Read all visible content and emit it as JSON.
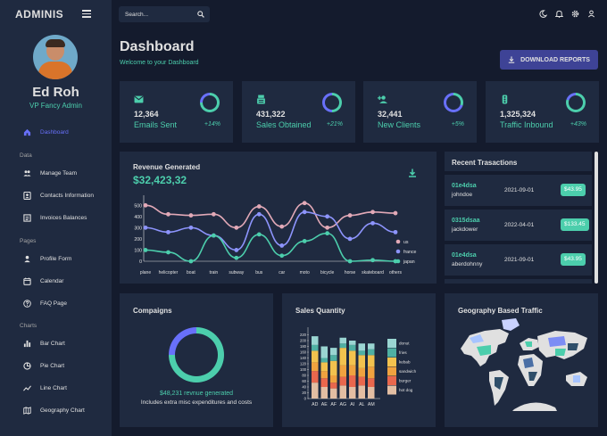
{
  "sidebar": {
    "brand": "ADMINIS",
    "user_name": "Ed Roh",
    "user_role": "VP Fancy Admin",
    "dashboard_label": "Dashboard",
    "sections": [
      {
        "label": "Data",
        "items": [
          "Manage Team",
          "Contacts Information",
          "Invoices Balances"
        ]
      },
      {
        "label": "Pages",
        "items": [
          "Profile Form",
          "Calendar",
          "FAQ Page"
        ]
      },
      {
        "label": "Charts",
        "items": [
          "Bar Chart",
          "Pie Chart",
          "Line Chart",
          "Geography Chart"
        ]
      }
    ]
  },
  "topbar": {
    "search_placeholder": "Search...",
    "icons": [
      "dark-mode-icon",
      "notifications-icon",
      "settings-icon",
      "person-icon"
    ]
  },
  "header": {
    "title": "Dashboard",
    "subtitle": "Welcome to your Dashboard",
    "download_label": "DOWNLOAD REPORTS"
  },
  "stats": [
    {
      "icon": "email-icon",
      "value": "12,364",
      "label": "Emails Sent",
      "percent": "+14%",
      "progress": 0.75
    },
    {
      "icon": "point-of-sale-icon",
      "value": "431,322",
      "label": "Sales Obtained",
      "percent": "+21%",
      "progress": 0.5
    },
    {
      "icon": "person-add-icon",
      "value": "32,441",
      "label": "New Clients",
      "percent": "+5%",
      "progress": 0.3
    },
    {
      "icon": "traffic-icon",
      "value": "1,325,324",
      "label": "Traffic Inbound",
      "percent": "+43%",
      "progress": 0.8
    }
  ],
  "colors": {
    "accent": "#4cceac",
    "primary_bg": "#141b2d",
    "panel_bg": "#1f2a40",
    "blue": "#6870fa",
    "button": "#3e4396"
  },
  "revenue": {
    "title": "Revenue Generated",
    "value": "$32,423,32"
  },
  "transactions": {
    "title": "Recent Trasactions",
    "rows": [
      {
        "id": "01e4dsa",
        "user": "johndoe",
        "date": "2021-09-01",
        "cost": "$43.95"
      },
      {
        "id": "0315dsaa",
        "user": "jackdower",
        "date": "2022-04-01",
        "cost": "$133.45"
      },
      {
        "id": "01e4dsa",
        "user": "aberdohnny",
        "date": "2021-09-01",
        "cost": "$43.95"
      }
    ]
  },
  "campaigns": {
    "title": "Compaigns",
    "revenue_text": "$48,231 revnue generated",
    "note": "Includes extra misc expenditures and costs",
    "progress": 0.75
  },
  "sales": {
    "title": "Sales Quantity"
  },
  "geo": {
    "title": "Geography Based Traffic"
  },
  "chart_data": [
    {
      "type": "line",
      "categories": [
        "plane",
        "helicopter",
        "boat",
        "train",
        "subway",
        "bus",
        "car",
        "moto",
        "bicycle",
        "horse",
        "skateboard",
        "others"
      ],
      "yticks": [
        0,
        100,
        200,
        300,
        400,
        500
      ],
      "ylim": [
        0,
        550
      ],
      "legend": "right",
      "series": [
        {
          "name": "us",
          "color": "#e2a9b7",
          "values": [
            500,
            420,
            410,
            420,
            300,
            490,
            310,
            520,
            300,
            410,
            440,
            430
          ]
        },
        {
          "name": "france",
          "color": "#8d94fc",
          "values": [
            300,
            260,
            300,
            230,
            100,
            420,
            140,
            440,
            400,
            200,
            340,
            260
          ]
        },
        {
          "name": "japan",
          "color": "#4cceac",
          "values": [
            100,
            80,
            0,
            230,
            30,
            240,
            50,
            180,
            250,
            0,
            10,
            0
          ]
        }
      ]
    },
    {
      "type": "bar",
      "stacked": true,
      "categories": [
        "AD",
        "AE",
        "AF",
        "AG",
        "AI",
        "AL",
        "AM"
      ],
      "yticks": [
        0,
        20,
        40,
        60,
        80,
        100,
        120,
        140,
        160,
        180,
        200,
        220
      ],
      "ylim": [
        0,
        240
      ],
      "legend": "right",
      "series": [
        {
          "name": "donut",
          "color": "#9ad5d2",
          "values": [
            30,
            40,
            25,
            20,
            15,
            25,
            20
          ]
        },
        {
          "name": "fries",
          "color": "#4fb0a3",
          "values": [
            20,
            15,
            20,
            15,
            20,
            15,
            20
          ]
        },
        {
          "name": "kebab",
          "color": "#f3c24e",
          "values": [
            40,
            30,
            50,
            60,
            50,
            45,
            40
          ]
        },
        {
          "name": "sandwich",
          "color": "#f0a23f",
          "values": [
            30,
            25,
            25,
            40,
            35,
            30,
            40
          ]
        },
        {
          "name": "burger",
          "color": "#e9674d",
          "values": [
            40,
            30,
            20,
            30,
            40,
            30,
            30
          ]
        },
        {
          "name": "hot dog",
          "color": "#e3bea3",
          "values": [
            55,
            40,
            35,
            45,
            40,
            45,
            40
          ]
        }
      ]
    }
  ]
}
